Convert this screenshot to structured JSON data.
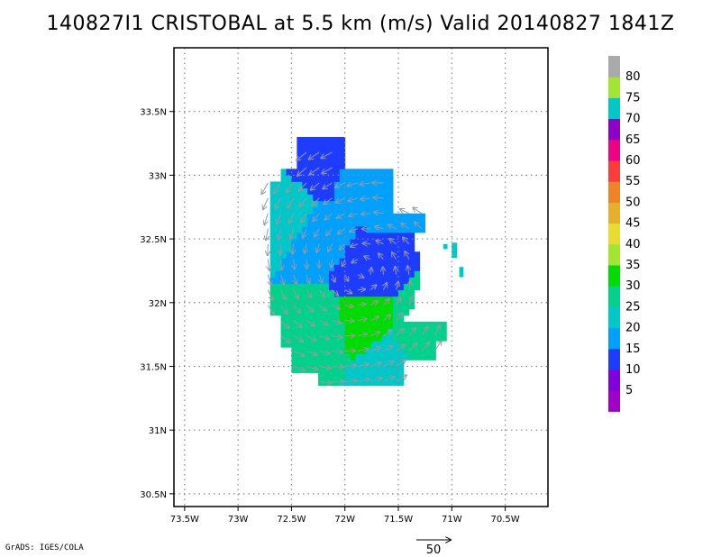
{
  "header": {
    "title": "140827I1 CRISTOBAL at 5.5 km (m/s) Valid 20140827 1841Z"
  },
  "footer": {
    "credit": "GrADS: IGES/COLA"
  },
  "chart_data": {
    "type": "heatmap",
    "title": "140827I1 CRISTOBAL at 5.5 km (m/s) Valid 20140827 1841Z",
    "x_ticks": [
      "73.5W",
      "73W",
      "72.5W",
      "72W",
      "71.5W",
      "71W",
      "70.5W"
    ],
    "x_tick_values": [
      -73.5,
      -73.0,
      -72.5,
      -72.0,
      -71.5,
      -71.0,
      -70.5
    ],
    "y_ticks": [
      "30.5N",
      "31N",
      "31.5N",
      "32N",
      "32.5N",
      "33N",
      "33.5N"
    ],
    "y_tick_values": [
      30.5,
      31.0,
      31.5,
      32.0,
      32.5,
      33.0,
      33.5
    ],
    "xlim": [
      -73.6,
      -70.1
    ],
    "ylim": [
      30.4,
      34.0
    ],
    "grid": true,
    "colorbar": {
      "placement": "right",
      "labels": [
        "5",
        "10",
        "15",
        "20",
        "25",
        "30",
        "35",
        "40",
        "45",
        "50",
        "55",
        "60",
        "65",
        "70",
        "75",
        "80"
      ],
      "colors": [
        "#a000c8",
        "#8200dc",
        "#1e3cff",
        "#00a0ff",
        "#00c8c8",
        "#00d28c",
        "#00dc00",
        "#a0e632",
        "#e6dc32",
        "#e6af2d",
        "#f08228",
        "#fa3c3c",
        "#f00082",
        "#8c00c8",
        "#00c8c8",
        "#a0e632",
        "#aaaaaa"
      ]
    },
    "vector_reference": {
      "label": "50",
      "units": "m/s"
    },
    "storm_center": {
      "lon": -71.85,
      "lat": 32.25
    },
    "wind_regions": [
      {
        "lon": -72.3,
        "lat": 33.1,
        "speed": 10
      },
      {
        "lon": -71.85,
        "lat": 32.25,
        "speed": 10
      },
      {
        "lon": -72.55,
        "lat": 32.75,
        "speed": 20
      },
      {
        "lon": -72.2,
        "lat": 32.5,
        "speed": 15
      },
      {
        "lon": -71.8,
        "lat": 32.9,
        "speed": 15
      },
      {
        "lon": -72.2,
        "lat": 31.8,
        "speed": 25
      },
      {
        "lon": -71.85,
        "lat": 31.87,
        "speed": 30
      },
      {
        "lon": -71.6,
        "lat": 31.5,
        "speed": 20
      },
      {
        "lon": -71.3,
        "lat": 31.75,
        "speed": 25
      }
    ]
  }
}
